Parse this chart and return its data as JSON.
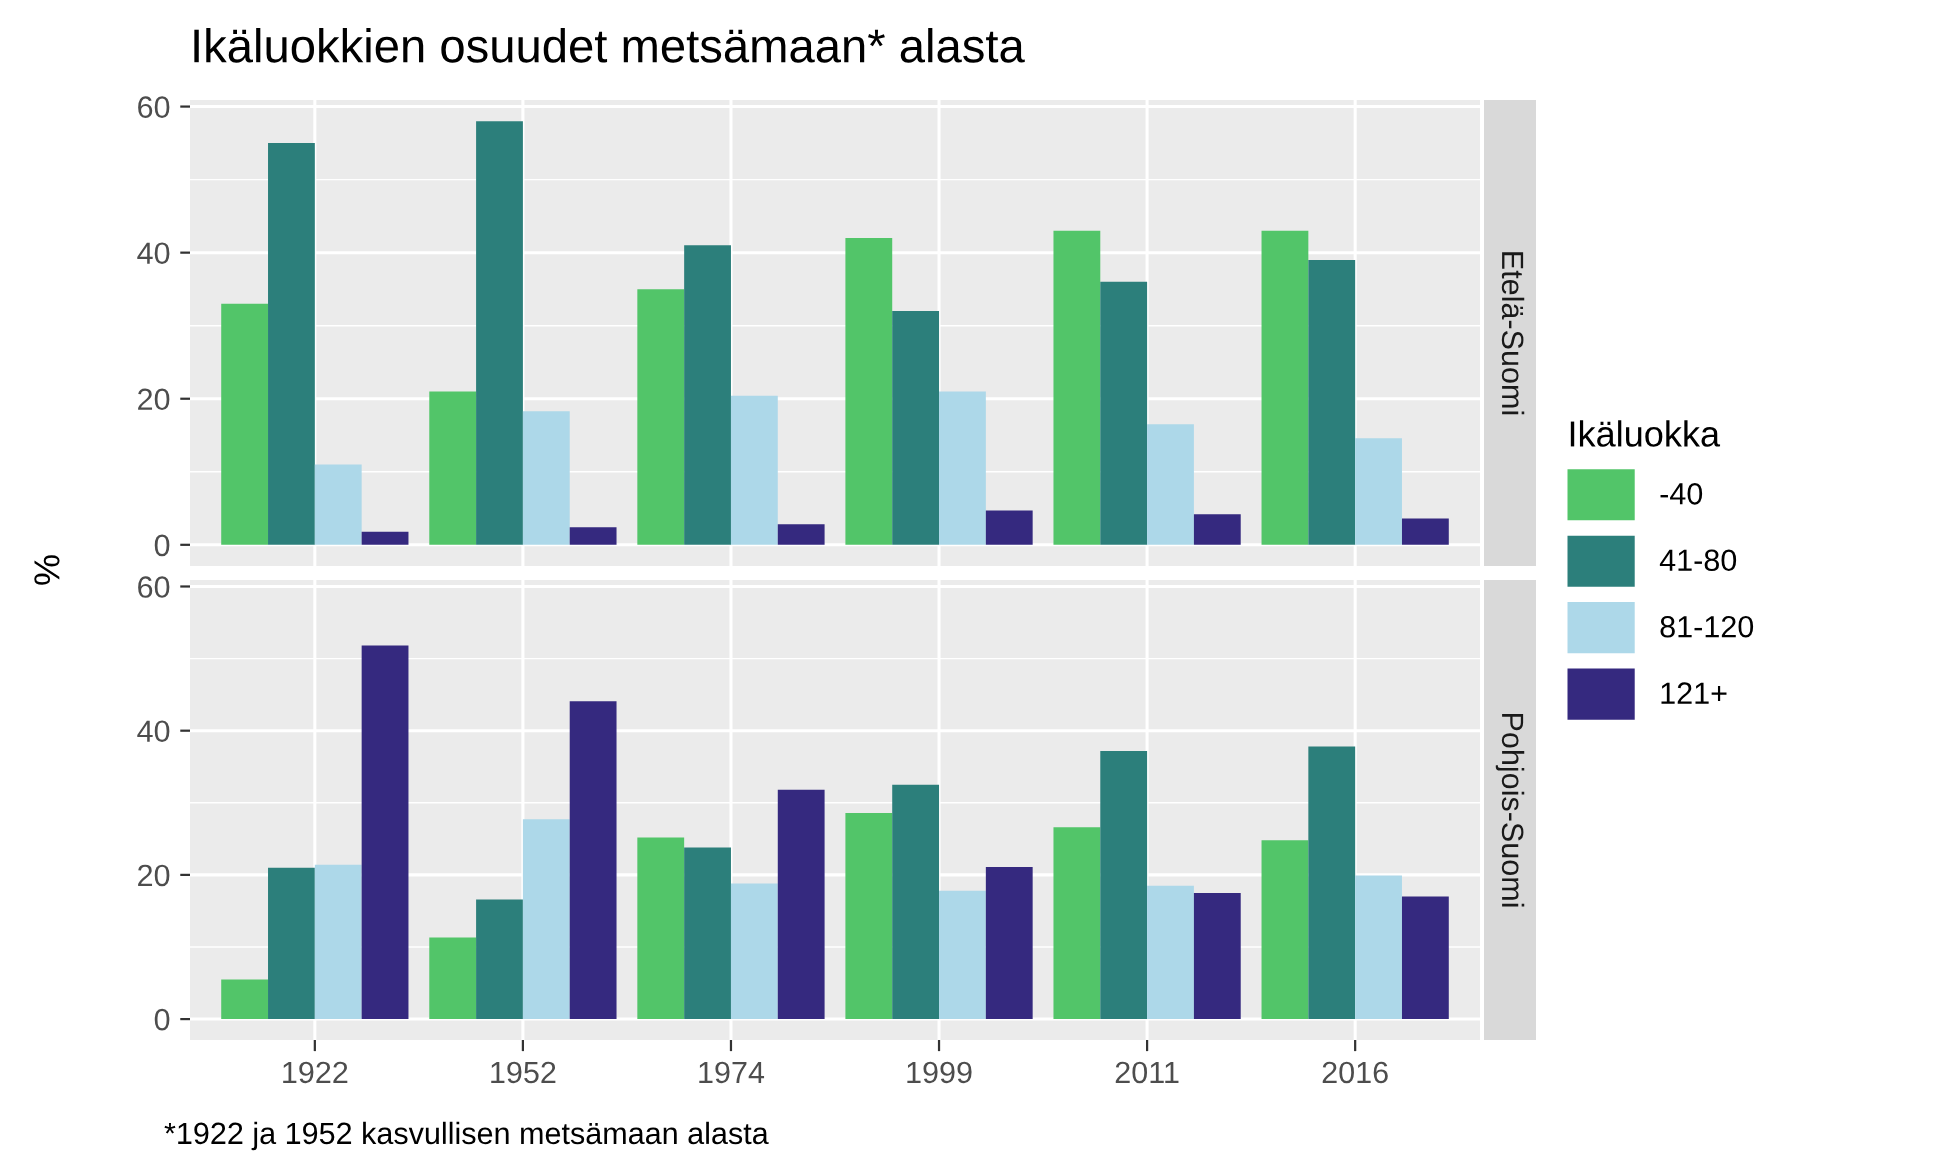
{
  "chart_data": [
    {
      "type": "bar",
      "title": "Ikäluokkien osuudet metsämaan* alasta",
      "annotations": [
        "Etelä-Suomi"
      ],
      "ylabel": "%",
      "legend_title": "Ikäluokka",
      "legend": "right",
      "grid": true,
      "tick_labels": "y",
      "categories": [
        "1922",
        "1952",
        "1974",
        "1999",
        "2011",
        "2016"
      ],
      "ylim": [
        -2.9,
        60.9
      ],
      "yticks": [
        0,
        20,
        40,
        60
      ],
      "series": [
        {
          "name": "-40",
          "color": "#52c569",
          "values": [
            33,
            21,
            35,
            42,
            43,
            43
          ]
        },
        {
          "name": "41-80",
          "color": "#2c7f7b",
          "values": [
            55,
            58,
            41,
            32,
            36,
            39
          ]
        },
        {
          "name": "81-120",
          "color": "#add8e9",
          "values": [
            11,
            18.3,
            20.4,
            21,
            16.5,
            14.6
          ]
        },
        {
          "name": "121+",
          "color": "#35297f",
          "values": [
            1.8,
            2.4,
            2.8,
            4.7,
            4.2,
            3.6
          ]
        }
      ]
    },
    {
      "type": "bar",
      "grid": true,
      "annotations": [
        "Pohjois-Suomi",
        "*1922 ja 1952 kasvullisen metsämaan alasta"
      ],
      "categories": [
        "1922",
        "1952",
        "1974",
        "1999",
        "2011",
        "2016"
      ],
      "ylim": [
        -2.9,
        60.9
      ],
      "yticks": [
        0,
        20,
        40,
        60
      ],
      "series": [
        {
          "color": "#52c569",
          "values": [
            5.5,
            11.3,
            25.2,
            28.6,
            26.6,
            24.8
          ]
        },
        {
          "color": "#2c7f7b",
          "values": [
            21,
            16.6,
            23.8,
            32.5,
            37.2,
            37.8
          ]
        },
        {
          "color": "#add8e9",
          "values": [
            21.4,
            27.7,
            18.8,
            17.8,
            18.5,
            19.9
          ]
        },
        {
          "color": "#35297f",
          "values": [
            51.8,
            44.1,
            31.8,
            21.1,
            17.5,
            17.0
          ]
        }
      ]
    }
  ]
}
